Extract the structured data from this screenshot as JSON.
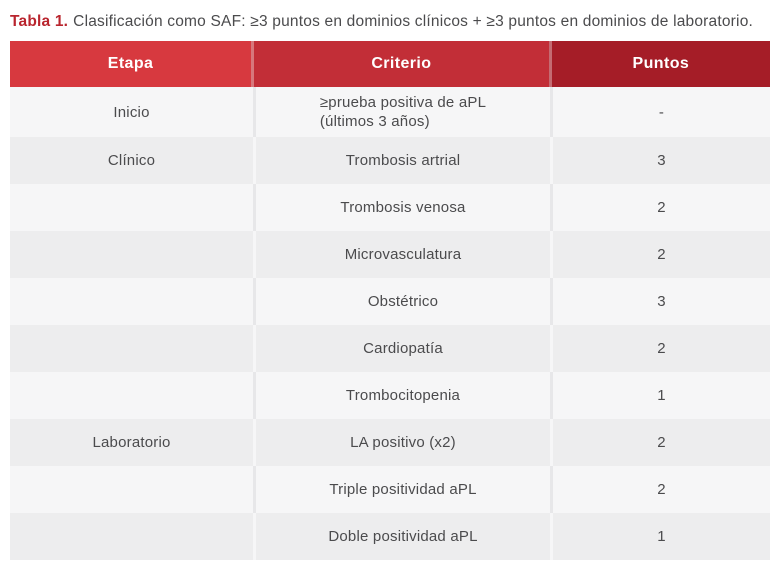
{
  "caption": {
    "label": "Tabla 1.",
    "text": "Clasificación como SAF: ≥3 puntos en dominios clínicos + ≥3 puntos en dominios de laboratorio."
  },
  "colors": {
    "caption_label_red": "#b9252e",
    "header_etapa_red": "#d7393f",
    "header_criterio_red": "#c22e37",
    "header_puntos_red": "#a51d27",
    "row_light": "#f6f6f7",
    "row_dark": "#ededee",
    "body_text": "#4b4b4d"
  },
  "table": {
    "columns": [
      {
        "label": "Etapa",
        "color": "#d7393f"
      },
      {
        "label": "Criterio",
        "color": "#c22e37"
      },
      {
        "label": "Puntos",
        "color": "#a51d27"
      }
    ],
    "rows": [
      {
        "etapa": "Inicio",
        "criterio_lines": [
          "≥prueba positiva de aPL",
          "(últimos 3 años)"
        ],
        "puntos": "-",
        "shade": "light"
      },
      {
        "etapa": "Clínico",
        "criterio_lines": [
          "Trombosis artrial"
        ],
        "puntos": "3",
        "shade": "dark"
      },
      {
        "etapa": "",
        "criterio_lines": [
          "Trombosis venosa"
        ],
        "puntos": "2",
        "shade": "light"
      },
      {
        "etapa": "",
        "criterio_lines": [
          "Microvasculatura"
        ],
        "puntos": "2",
        "shade": "dark"
      },
      {
        "etapa": "",
        "criterio_lines": [
          "Obstétrico"
        ],
        "puntos": "3",
        "shade": "light"
      },
      {
        "etapa": "",
        "criterio_lines": [
          "Cardiopatía"
        ],
        "puntos": "2",
        "shade": "dark"
      },
      {
        "etapa": "",
        "criterio_lines": [
          "Trombocitopenia"
        ],
        "puntos": "1",
        "shade": "light"
      },
      {
        "etapa": "Laboratorio",
        "criterio_lines": [
          "LA positivo (x2)"
        ],
        "puntos": "2",
        "shade": "dark"
      },
      {
        "etapa": "",
        "criterio_lines": [
          "Triple positividad aPL"
        ],
        "puntos": "2",
        "shade": "light"
      },
      {
        "etapa": "",
        "criterio_lines": [
          "Doble positividad aPL"
        ],
        "puntos": "1",
        "shade": "dark"
      }
    ]
  }
}
